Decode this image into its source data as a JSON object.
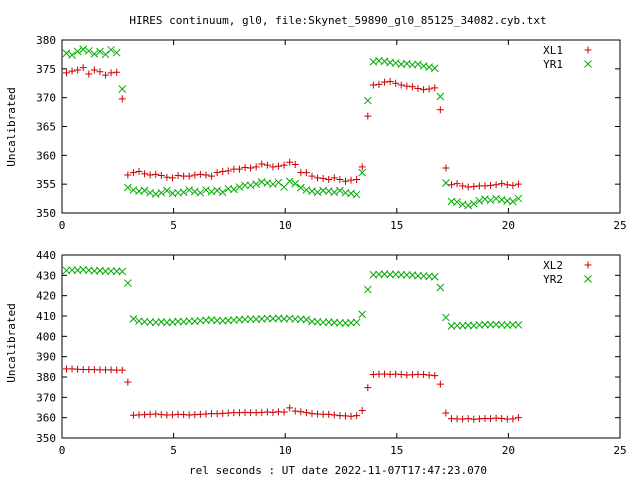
{
  "title": "HIRES continuum, gl0, file:Skynet_59890_gl0_85125_34082.cyb.txt",
  "xlabel": "rel seconds : UT date 2022-11-07T17:47:23.070",
  "chart_data": [
    {
      "type": "scatter",
      "ylabel": "Uncalibrated",
      "xlim": [
        0,
        25
      ],
      "ylim": [
        350,
        380
      ],
      "xticks": [
        0,
        5,
        10,
        15,
        20,
        25
      ],
      "yticks": [
        350,
        355,
        360,
        365,
        370,
        375,
        380
      ],
      "grid": false,
      "legend_position": "top-right",
      "series": [
        {
          "name": "XL1",
          "marker": "plus",
          "color": "#cc0000",
          "x": [
            0.2,
            0.45,
            0.7,
            0.95,
            1.2,
            1.45,
            1.7,
            1.95,
            2.2,
            2.45,
            2.7,
            2.95,
            3.2,
            3.45,
            3.7,
            3.95,
            4.2,
            4.45,
            4.7,
            4.95,
            5.2,
            5.45,
            5.7,
            5.95,
            6.2,
            6.45,
            6.7,
            6.95,
            7.2,
            7.45,
            7.7,
            7.95,
            8.2,
            8.45,
            8.7,
            8.95,
            9.2,
            9.45,
            9.7,
            9.95,
            10.2,
            10.45,
            10.7,
            10.95,
            11.2,
            11.45,
            11.7,
            11.95,
            12.2,
            12.45,
            12.7,
            12.95,
            13.2,
            13.45,
            13.7,
            13.95,
            14.2,
            14.45,
            14.7,
            14.95,
            15.2,
            15.45,
            15.7,
            15.95,
            16.2,
            16.45,
            16.7,
            16.95,
            17.2,
            17.45,
            17.7,
            17.95,
            18.2,
            18.45,
            18.7,
            18.95,
            19.2,
            19.45,
            19.7,
            19.95,
            20.2,
            20.45
          ],
          "y": [
            374.3,
            374.6,
            374.8,
            375.2,
            374.1,
            374.8,
            374.5,
            373.9,
            374.3,
            374.4,
            369.8,
            356.6,
            357.0,
            357.2,
            356.8,
            356.6,
            356.7,
            356.5,
            356.2,
            356.1,
            356.5,
            356.4,
            356.4,
            356.6,
            356.7,
            356.6,
            356.4,
            357.0,
            357.2,
            357.3,
            357.6,
            357.6,
            357.9,
            357.8,
            358.0,
            358.5,
            358.3,
            358.0,
            358.1,
            358.3,
            358.8,
            358.4,
            357.0,
            357.0,
            356.4,
            356.1,
            356.0,
            355.8,
            356.1,
            355.8,
            355.5,
            355.7,
            355.8,
            358.0,
            366.8,
            372.2,
            372.3,
            372.7,
            372.8,
            372.5,
            372.2,
            372.0,
            371.9,
            371.6,
            371.4,
            371.5,
            371.7,
            367.9,
            357.8,
            354.9,
            355.1,
            354.7,
            354.5,
            354.6,
            354.7,
            354.7,
            354.8,
            354.9,
            355.1,
            354.9,
            354.8,
            355.0
          ]
        },
        {
          "name": "YR1",
          "marker": "cross",
          "color": "#00aa00",
          "x": [
            0.2,
            0.45,
            0.7,
            0.95,
            1.2,
            1.45,
            1.7,
            1.95,
            2.2,
            2.45,
            2.7,
            2.95,
            3.2,
            3.45,
            3.7,
            3.95,
            4.2,
            4.45,
            4.7,
            4.95,
            5.2,
            5.45,
            5.7,
            5.95,
            6.2,
            6.45,
            6.7,
            6.95,
            7.2,
            7.45,
            7.7,
            7.95,
            8.2,
            8.45,
            8.7,
            8.95,
            9.2,
            9.45,
            9.7,
            9.95,
            10.2,
            10.45,
            10.7,
            10.95,
            11.2,
            11.45,
            11.7,
            11.95,
            12.2,
            12.45,
            12.7,
            12.95,
            13.2,
            13.45,
            13.7,
            13.95,
            14.2,
            14.45,
            14.7,
            14.95,
            15.2,
            15.45,
            15.7,
            15.95,
            16.2,
            16.45,
            16.7,
            16.95,
            17.2,
            17.45,
            17.7,
            17.95,
            18.2,
            18.45,
            18.7,
            18.95,
            19.2,
            19.45,
            19.7,
            19.95,
            20.2,
            20.45
          ],
          "y": [
            377.7,
            377.4,
            378.0,
            378.4,
            378.1,
            377.6,
            378.0,
            377.5,
            378.3,
            377.8,
            371.5,
            354.4,
            354.0,
            353.8,
            353.9,
            353.5,
            353.3,
            353.5,
            353.9,
            353.4,
            353.5,
            353.6,
            354.0,
            353.7,
            353.5,
            354.0,
            353.7,
            353.9,
            353.6,
            354.2,
            354.1,
            354.5,
            354.8,
            354.8,
            355.0,
            355.4,
            355.2,
            355.0,
            355.3,
            354.5,
            355.5,
            355.1,
            354.4,
            354.0,
            353.8,
            353.6,
            353.9,
            353.8,
            353.6,
            353.9,
            353.5,
            353.4,
            353.2,
            357.0,
            369.5,
            376.2,
            376.4,
            376.3,
            376.1,
            376.0,
            375.8,
            375.9,
            375.7,
            375.8,
            375.5,
            375.3,
            375.1,
            370.2,
            355.2,
            352.0,
            351.9,
            351.5,
            351.3,
            351.6,
            352.1,
            352.4,
            352.2,
            352.5,
            352.3,
            352.1,
            352.0,
            352.5
          ]
        }
      ]
    },
    {
      "type": "scatter",
      "ylabel": "Uncalibrated",
      "xlim": [
        0,
        25
      ],
      "ylim": [
        350,
        440
      ],
      "xticks": [
        0,
        5,
        10,
        15,
        20,
        25
      ],
      "yticks": [
        350,
        360,
        370,
        380,
        390,
        400,
        410,
        420,
        430,
        440
      ],
      "grid": false,
      "legend_position": "top-right",
      "series": [
        {
          "name": "XL2",
          "marker": "plus",
          "color": "#cc0000",
          "x": [
            0.2,
            0.45,
            0.7,
            0.95,
            1.2,
            1.45,
            1.7,
            1.95,
            2.2,
            2.45,
            2.7,
            2.95,
            3.2,
            3.45,
            3.7,
            3.95,
            4.2,
            4.45,
            4.7,
            4.95,
            5.2,
            5.45,
            5.7,
            5.95,
            6.2,
            6.45,
            6.7,
            6.95,
            7.2,
            7.45,
            7.7,
            7.95,
            8.2,
            8.45,
            8.7,
            8.95,
            9.2,
            9.45,
            9.7,
            9.95,
            10.2,
            10.45,
            10.7,
            10.95,
            11.2,
            11.45,
            11.7,
            11.95,
            12.2,
            12.45,
            12.7,
            12.95,
            13.2,
            13.45,
            13.7,
            13.95,
            14.2,
            14.45,
            14.7,
            14.95,
            15.2,
            15.45,
            15.7,
            15.95,
            16.2,
            16.45,
            16.7,
            16.95,
            17.2,
            17.45,
            17.7,
            17.95,
            18.2,
            18.45,
            18.7,
            18.95,
            19.2,
            19.45,
            19.7,
            19.95,
            20.2,
            20.45
          ],
          "y": [
            384.0,
            384.0,
            383.8,
            383.7,
            383.6,
            383.6,
            383.5,
            383.5,
            383.5,
            383.4,
            383.4,
            377.5,
            361.2,
            361.4,
            361.5,
            361.7,
            361.8,
            361.5,
            361.3,
            361.4,
            361.6,
            361.5,
            361.3,
            361.5,
            361.6,
            361.8,
            362.0,
            361.9,
            362.1,
            362.3,
            362.5,
            362.4,
            362.6,
            362.5,
            362.4,
            362.6,
            362.8,
            362.6,
            362.9,
            362.7,
            364.8,
            363.2,
            362.9,
            362.5,
            362.0,
            361.8,
            361.7,
            361.6,
            361.3,
            361.0,
            360.9,
            360.7,
            361.0,
            363.5,
            374.8,
            381.2,
            381.4,
            381.5,
            381.3,
            381.4,
            381.2,
            381.0,
            381.1,
            381.3,
            381.2,
            380.9,
            380.7,
            376.5,
            362.3,
            359.5,
            359.4,
            359.3,
            359.5,
            359.2,
            359.4,
            359.6,
            359.5,
            359.8,
            359.6,
            359.3,
            359.4,
            360.0
          ]
        },
        {
          "name": "YR2",
          "marker": "cross",
          "color": "#00aa00",
          "x": [
            0.2,
            0.45,
            0.7,
            0.95,
            1.2,
            1.45,
            1.7,
            1.95,
            2.2,
            2.45,
            2.7,
            2.95,
            3.2,
            3.45,
            3.7,
            3.95,
            4.2,
            4.45,
            4.7,
            4.95,
            5.2,
            5.45,
            5.7,
            5.95,
            6.2,
            6.45,
            6.7,
            6.95,
            7.2,
            7.45,
            7.7,
            7.95,
            8.2,
            8.45,
            8.7,
            8.95,
            9.2,
            9.45,
            9.7,
            9.95,
            10.2,
            10.45,
            10.7,
            10.95,
            11.2,
            11.45,
            11.7,
            11.95,
            12.2,
            12.45,
            12.7,
            12.95,
            13.2,
            13.45,
            13.7,
            13.95,
            14.2,
            14.45,
            14.7,
            14.95,
            15.2,
            15.45,
            15.7,
            15.95,
            16.2,
            16.45,
            16.7,
            16.95,
            17.2,
            17.45,
            17.7,
            17.95,
            18.2,
            18.45,
            18.7,
            18.95,
            19.2,
            19.45,
            19.7,
            19.95,
            20.2,
            20.45
          ],
          "y": [
            432.4,
            432.6,
            432.5,
            432.8,
            432.5,
            432.2,
            432.3,
            432.0,
            432.1,
            432.0,
            431.9,
            426.2,
            408.6,
            407.5,
            407.2,
            407.0,
            406.9,
            407.1,
            406.8,
            407.0,
            407.3,
            407.2,
            407.5,
            407.4,
            407.7,
            407.9,
            408.1,
            407.8,
            407.6,
            407.8,
            408.0,
            408.2,
            408.3,
            408.5,
            408.4,
            408.6,
            408.8,
            408.7,
            408.9,
            408.6,
            408.8,
            408.5,
            408.4,
            408.2,
            407.3,
            407.1,
            406.9,
            407.0,
            406.8,
            406.6,
            406.5,
            406.7,
            406.9,
            410.8,
            423.0,
            430.3,
            430.5,
            430.6,
            430.4,
            430.5,
            430.3,
            430.2,
            430.1,
            429.8,
            429.7,
            429.5,
            429.3,
            424.0,
            409.3,
            405.1,
            405.3,
            405.2,
            405.4,
            405.3,
            405.6,
            405.8,
            405.7,
            405.9,
            405.6,
            405.5,
            405.7,
            405.6
          ]
        }
      ]
    }
  ]
}
